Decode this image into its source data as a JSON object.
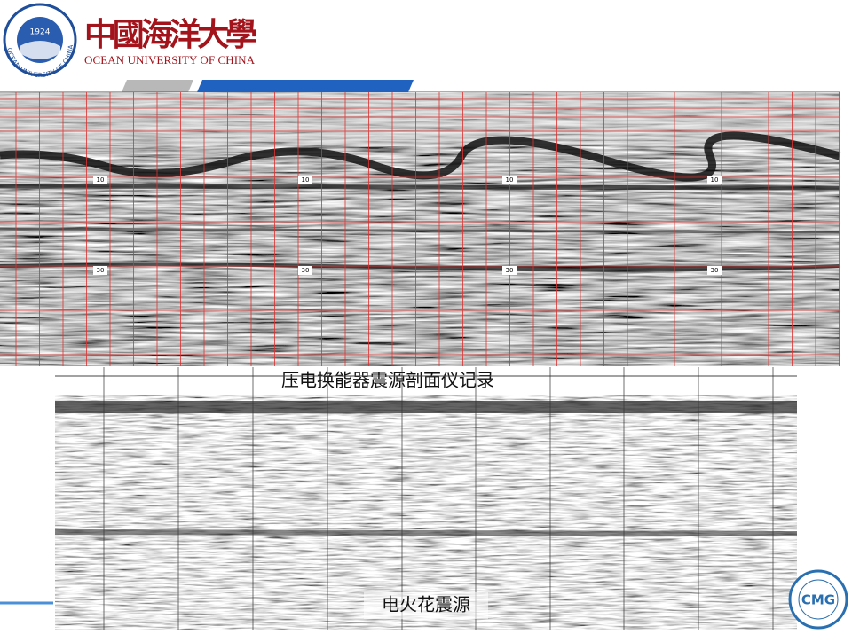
{
  "header": {
    "emblem_year": "1924",
    "emblem_ring": "OCEAN UNIVERSITY OF CHINA",
    "title_cn": "中國海洋大學",
    "title_en": "OCEAN UNIVERSITY OF CHINA"
  },
  "top_record": {
    "caption": "压电换能器震源剖面仪记录",
    "depth_marks": [
      "10",
      "30"
    ]
  },
  "bottom_record": {
    "caption": "电火花震源"
  },
  "footer_logo": {
    "label": "CMG"
  }
}
